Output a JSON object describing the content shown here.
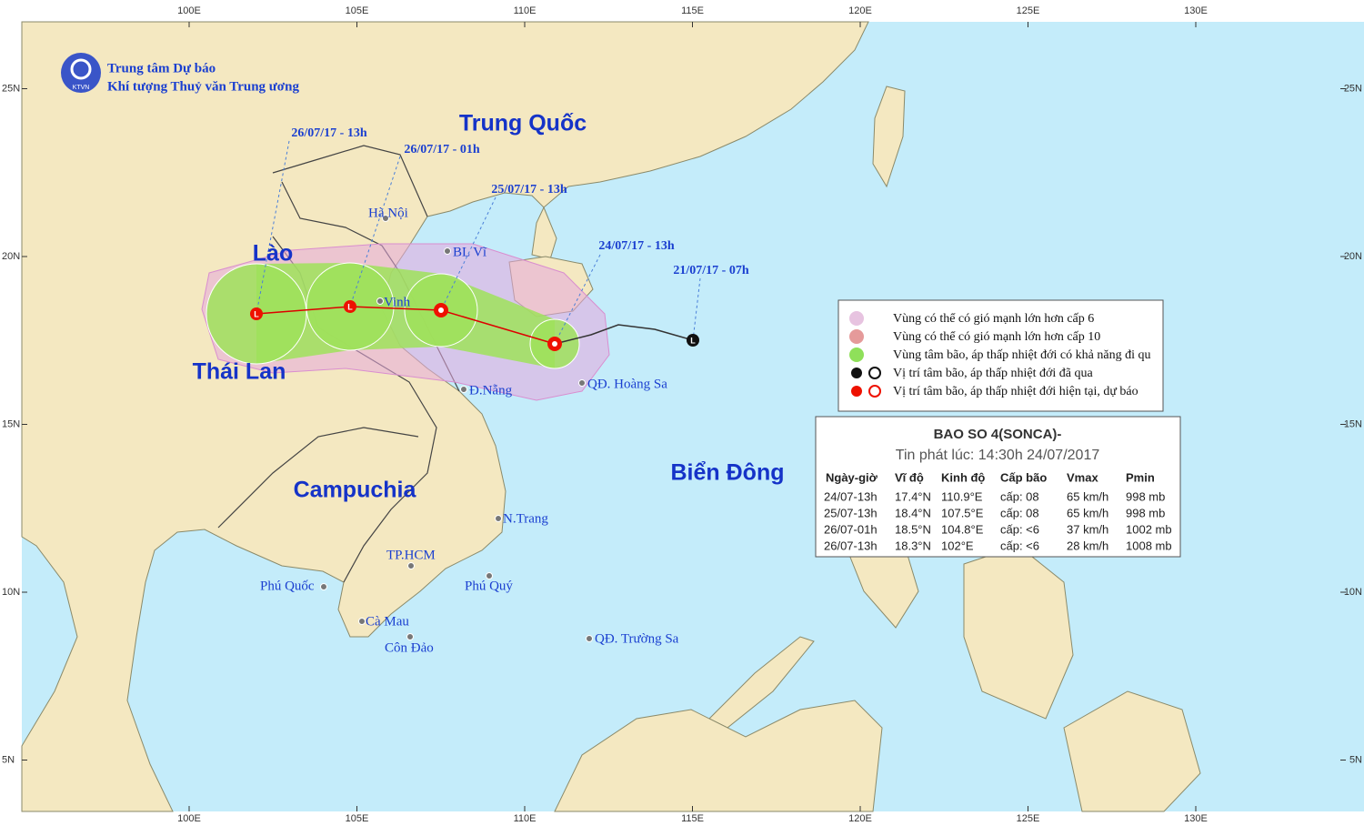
{
  "header": {
    "org_line1": "Trung tâm Dự báo",
    "org_line2": "Khí tượng Thuỷ văn Trung ương",
    "logo_text": "KTVN"
  },
  "lon_ticks": [
    {
      "value": 100,
      "label": "100E"
    },
    {
      "value": 105,
      "label": "105E"
    },
    {
      "value": 110,
      "label": "110E"
    },
    {
      "value": 115,
      "label": "115E"
    },
    {
      "value": 120,
      "label": "120E"
    },
    {
      "value": 125,
      "label": "125E"
    },
    {
      "value": 130,
      "label": "130E"
    }
  ],
  "lat_ticks": [
    {
      "value": 25,
      "label": "25N"
    },
    {
      "value": 20,
      "label": "20N"
    },
    {
      "value": 15,
      "label": "15N"
    },
    {
      "value": 10,
      "label": "10N"
    },
    {
      "value": 5,
      "label": "5N"
    }
  ],
  "regions": [
    "Trung Quốc",
    "Lào",
    "Thái Lan",
    "Campuchia",
    "Biển Đông"
  ],
  "places": [
    "Hà Nội",
    "BL Vĩ",
    "Vinh",
    "Đ.Nẵng",
    "QĐ. Hoàng Sa",
    "N.Trang",
    "TP.HCM",
    "Phú Quốc",
    "Phú Quý",
    "Cà Mau",
    "Côn Đảo",
    "QĐ. Trường Sa"
  ],
  "track_times": [
    "26/07/17 - 13h",
    "26/07/17 - 01h",
    "25/07/17 - 13h",
    "24/07/17 - 13h",
    "21/07/17 - 07h"
  ],
  "legend": [
    "Vùng có thể có gió mạnh lớn hơn cấp 6",
    "Vùng có thể có gió mạnh lớn hơn cấp 10",
    "Vùng tâm bão, áp thấp nhiệt đới có khả năng đi qu",
    "Vị trí tâm bão, áp thấp nhiệt đới đã qua",
    "Vị trí tâm bão, áp thấp nhiệt đới hiện tại, dự báo"
  ],
  "bulletin": {
    "title": "BAO SO 4(SONCA)-",
    "issued": "Tin phát lúc: 14:30h 24/07/2017",
    "columns": [
      "Ngày-giờ",
      "Vĩ độ",
      "Kinh độ",
      "Cấp bão",
      "Vmax",
      "Pmin"
    ],
    "rows": [
      [
        "24/07-13h",
        "17.4°N",
        "110.9°E",
        "cấp: 08",
        "65 km/h",
        "998 mb"
      ],
      [
        "25/07-13h",
        "18.4°N",
        "107.5°E",
        "cấp: 08",
        "65 km/h",
        "998 mb"
      ],
      [
        "26/07-01h",
        "18.5°N",
        "104.8°E",
        "cấp: <6",
        "37 km/h",
        "1002 mb"
      ],
      [
        "26/07-13h",
        "18.3°N",
        "102°E",
        "cấp: <6",
        "28 km/h",
        "1008 mb"
      ]
    ]
  }
}
